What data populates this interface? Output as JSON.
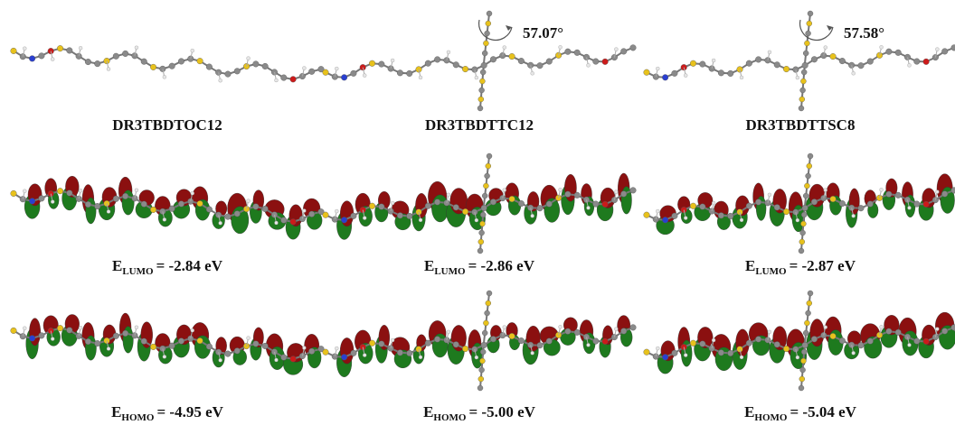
{
  "panels": [
    {
      "name": "DR3TBDTOC12",
      "lumo": {
        "symbol": "E",
        "subscript": "LUMO",
        "text": "= -2.84 eV"
      },
      "homo": {
        "symbol": "E",
        "subscript": "HOMO",
        "text": "= -4.95 eV"
      }
    },
    {
      "name": "DR3TBDTTC12",
      "angle": "57.07°",
      "lumo": {
        "symbol": "E",
        "subscript": "LUMO",
        "text": "= -2.86 eV"
      },
      "homo": {
        "symbol": "E",
        "subscript": "HOMO",
        "text": "= -5.00 eV"
      }
    },
    {
      "name": "DR3TBDTTSC8",
      "angle": "57.58°",
      "lumo": {
        "symbol": "E",
        "subscript": "LUMO",
        "text": "= -2.87 eV"
      },
      "homo": {
        "symbol": "E",
        "subscript": "HOMO",
        "text": "= -5.04 eV"
      }
    }
  ]
}
